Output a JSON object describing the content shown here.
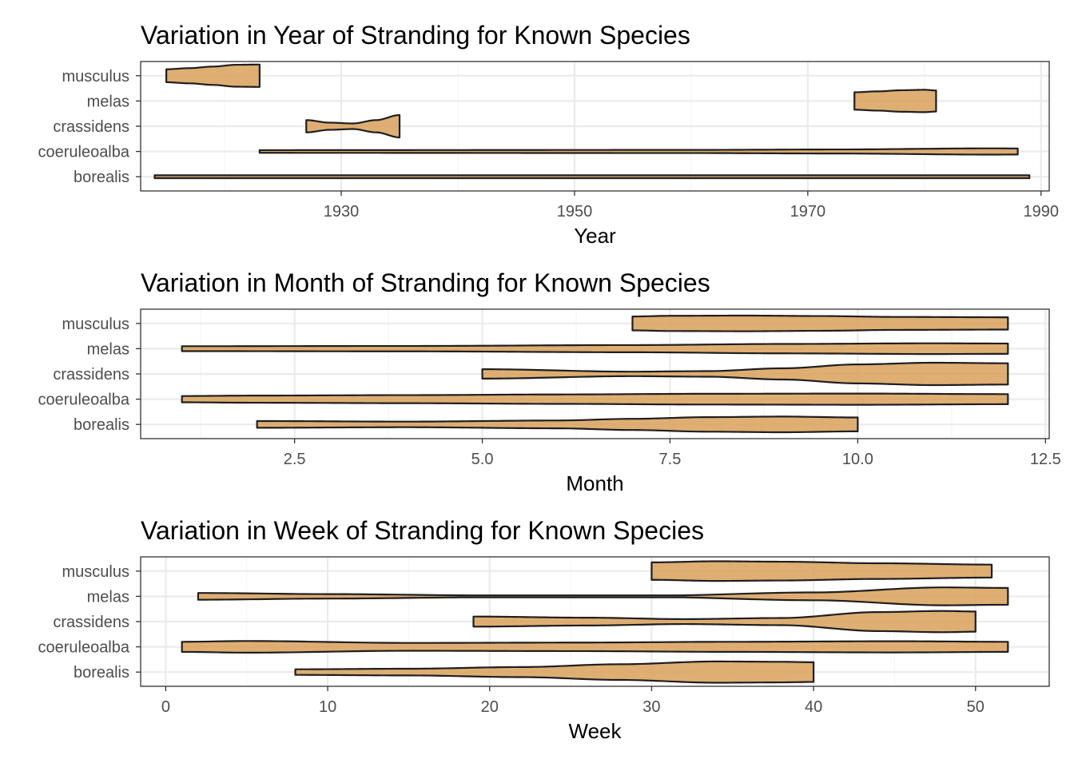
{
  "chart_data": [
    {
      "type": "violin",
      "title": "Variation in Year of Stranding for Known Species",
      "xlabel": "Year",
      "ylabel": "",
      "xlim": [
        1912.8,
        1990.7
      ],
      "xticks": [
        1930,
        1950,
        1970,
        1990
      ],
      "xtick_labels": [
        "1930",
        "1950",
        "1970",
        "1990"
      ],
      "categories": [
        "musculus",
        "melas",
        "crassidens",
        "coeruleoalba",
        "borealis"
      ],
      "series": [
        {
          "category": "musculus",
          "min": 1915,
          "max": 1923,
          "profile": [
            [
              1915,
              0.58
            ],
            [
              1917,
              0.68
            ],
            [
              1919,
              0.82
            ],
            [
              1921,
              0.98
            ],
            [
              1923,
              1.0
            ]
          ]
        },
        {
          "category": "melas",
          "min": 1974,
          "max": 1981,
          "profile": [
            [
              1974,
              0.78
            ],
            [
              1976,
              0.86
            ],
            [
              1978,
              0.96
            ],
            [
              1980,
              1.0
            ],
            [
              1981,
              0.94
            ]
          ]
        },
        {
          "category": "crassidens",
          "min": 1927,
          "max": 1935,
          "profile": [
            [
              1927,
              0.55
            ],
            [
              1929,
              0.32
            ],
            [
              1931,
              0.25
            ],
            [
              1933,
              0.55
            ],
            [
              1935,
              1.0
            ]
          ]
        },
        {
          "category": "coeruleoalba",
          "min": 1923,
          "max": 1988,
          "profile": [
            [
              1923,
              0.12
            ],
            [
              1960,
              0.14
            ],
            [
              1972,
              0.18
            ],
            [
              1986,
              0.28
            ],
            [
              1988,
              0.27
            ]
          ]
        },
        {
          "category": "borealis",
          "min": 1914,
          "max": 1989,
          "profile": [
            [
              1914,
              0.13
            ],
            [
              1950,
              0.13
            ],
            [
              1989,
              0.13
            ]
          ]
        }
      ]
    },
    {
      "type": "violin",
      "title": "Variation in Month of Stranding for Known Species",
      "xlabel": "Month",
      "ylabel": "",
      "xlim": [
        0.45,
        12.55
      ],
      "xticks": [
        2.5,
        5.0,
        7.5,
        10.0,
        12.5
      ],
      "xtick_labels": [
        "2.5",
        "5.0",
        "7.5",
        "10.0",
        "12.5"
      ],
      "categories": [
        "musculus",
        "melas",
        "crassidens",
        "coeruleoalba",
        "borealis"
      ],
      "series": [
        {
          "category": "musculus",
          "min": 7,
          "max": 12,
          "profile": [
            [
              7,
              0.62
            ],
            [
              7.5,
              0.68
            ],
            [
              8.5,
              0.7
            ],
            [
              9.5,
              0.66
            ],
            [
              10.5,
              0.58
            ],
            [
              12,
              0.55
            ]
          ]
        },
        {
          "category": "melas",
          "min": 1,
          "max": 12,
          "profile": [
            [
              1,
              0.22
            ],
            [
              4,
              0.24
            ],
            [
              7,
              0.32
            ],
            [
              9,
              0.42
            ],
            [
              11,
              0.48
            ],
            [
              12,
              0.46
            ]
          ]
        },
        {
          "category": "crassidens",
          "min": 5,
          "max": 12,
          "profile": [
            [
              5,
              0.42
            ],
            [
              7,
              0.2
            ],
            [
              8,
              0.25
            ],
            [
              9,
              0.5
            ],
            [
              10,
              0.85
            ],
            [
              11,
              1.0
            ],
            [
              12,
              0.95
            ]
          ]
        },
        {
          "category": "coeruleoalba",
          "min": 1,
          "max": 12,
          "profile": [
            [
              1,
              0.28
            ],
            [
              2,
              0.32
            ],
            [
              4,
              0.36
            ],
            [
              6,
              0.42
            ],
            [
              8,
              0.48
            ],
            [
              10,
              0.5
            ],
            [
              12,
              0.45
            ]
          ]
        },
        {
          "category": "borealis",
          "min": 2,
          "max": 10,
          "profile": [
            [
              2,
              0.3
            ],
            [
              4,
              0.25
            ],
            [
              6,
              0.35
            ],
            [
              7,
              0.5
            ],
            [
              8,
              0.65
            ],
            [
              9,
              0.7
            ],
            [
              10,
              0.62
            ]
          ]
        }
      ]
    },
    {
      "type": "violin",
      "title": "Variation in Week of Stranding for Known Species",
      "xlabel": "Week",
      "ylabel": "",
      "xlim": [
        -1.55,
        54.55
      ],
      "xticks": [
        0,
        10,
        20,
        30,
        40,
        50
      ],
      "xtick_labels": [
        "0",
        "10",
        "20",
        "30",
        "40",
        "50"
      ],
      "categories": [
        "musculus",
        "melas",
        "crassidens",
        "coeruleoalba",
        "borealis"
      ],
      "series": [
        {
          "category": "musculus",
          "min": 30,
          "max": 51,
          "profile": [
            [
              30,
              0.78
            ],
            [
              34,
              0.88
            ],
            [
              38,
              0.84
            ],
            [
              44,
              0.7
            ],
            [
              51,
              0.58
            ]
          ]
        },
        {
          "category": "melas",
          "min": 2,
          "max": 52,
          "profile": [
            [
              2,
              0.3
            ],
            [
              10,
              0.2
            ],
            [
              20,
              0.08
            ],
            [
              30,
              0.06
            ],
            [
              40,
              0.35
            ],
            [
              48,
              0.8
            ],
            [
              52,
              0.75
            ]
          ]
        },
        {
          "category": "crassidens",
          "min": 19,
          "max": 50,
          "profile": [
            [
              19,
              0.45
            ],
            [
              26,
              0.35
            ],
            [
              32,
              0.22
            ],
            [
              38,
              0.32
            ],
            [
              44,
              0.85
            ],
            [
              48,
              0.95
            ],
            [
              50,
              0.9
            ]
          ]
        },
        {
          "category": "coeruleoalba",
          "min": 1,
          "max": 52,
          "profile": [
            [
              1,
              0.45
            ],
            [
              5,
              0.52
            ],
            [
              15,
              0.35
            ],
            [
              25,
              0.38
            ],
            [
              35,
              0.45
            ],
            [
              45,
              0.5
            ],
            [
              52,
              0.45
            ]
          ]
        },
        {
          "category": "borealis",
          "min": 8,
          "max": 40,
          "profile": [
            [
              8,
              0.25
            ],
            [
              15,
              0.3
            ],
            [
              22,
              0.45
            ],
            [
              28,
              0.7
            ],
            [
              34,
              0.95
            ],
            [
              38,
              0.92
            ],
            [
              40,
              0.88
            ]
          ]
        }
      ]
    }
  ],
  "style": {
    "fill": "#d9a05b",
    "fill_opacity": 0.85,
    "stroke": "#1f1f1f",
    "panel_border": "#333333",
    "grid_major": "#ebebeb",
    "grid_minor": "#f5f5f5",
    "tick_color": "#333333",
    "tick_text": "#4d4d4d",
    "background": "#ffffff"
  }
}
